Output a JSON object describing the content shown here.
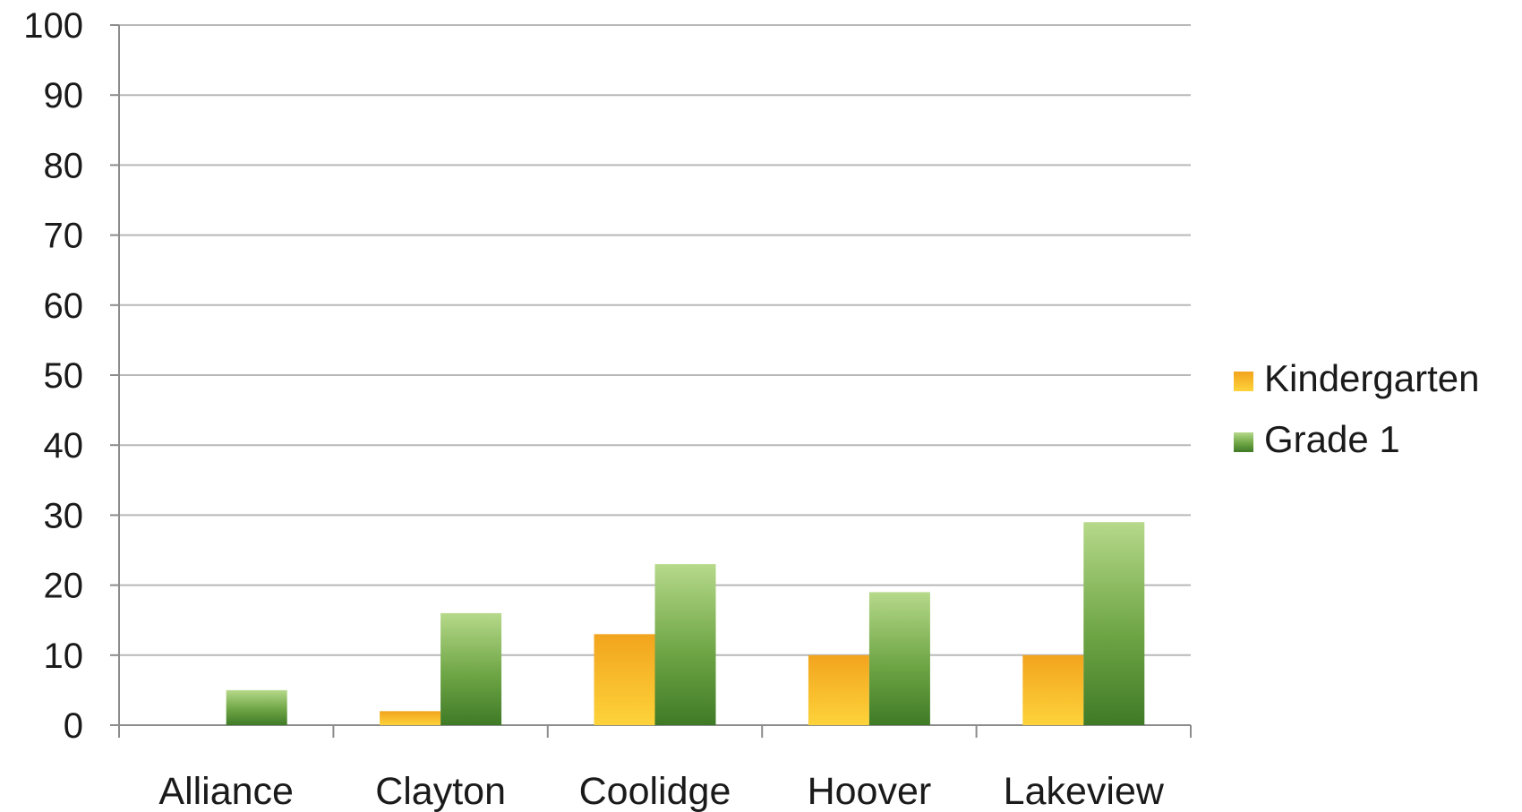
{
  "chart_data": {
    "type": "bar",
    "title": "",
    "xlabel": "",
    "ylabel": "",
    "categories": [
      "Alliance",
      "Clayton",
      "Coolidge",
      "Hoover",
      "Lakeview"
    ],
    "series": [
      {
        "name": "Kindergarten",
        "values": [
          0,
          2,
          13,
          10,
          10
        ],
        "color": "#f0b020"
      },
      {
        "name": "Grade 1",
        "values": [
          5,
          16,
          23,
          19,
          29
        ],
        "color": "#5e9a3a"
      }
    ],
    "ylim": [
      0,
      100
    ],
    "yticks": [
      "0",
      "10",
      "20",
      "30",
      "40",
      "50",
      "60",
      "70",
      "80",
      "90",
      "100"
    ],
    "grid": true,
    "legend_position": "right"
  }
}
